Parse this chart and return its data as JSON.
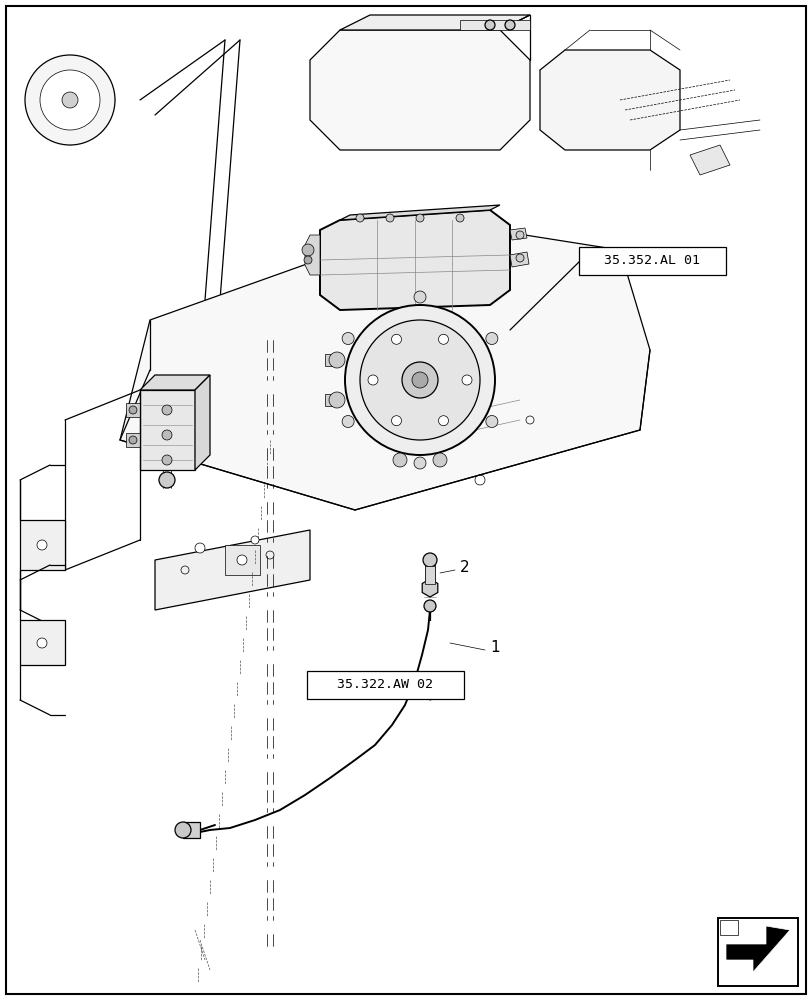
{
  "bg_color": "#ffffff",
  "line_color": "#000000",
  "label1": "35.352.AL 01",
  "label2": "35.322.AW 02",
  "part1": "1",
  "part2": "2",
  "fig_width": 8.12,
  "fig_height": 10.0,
  "dpi": 100,
  "lw_thin": 0.5,
  "lw_med": 0.9,
  "lw_thick": 1.4,
  "gray_light": "#f0f0f0",
  "gray_mid": "#d0d0d0",
  "gray_dark": "#a0a0a0"
}
